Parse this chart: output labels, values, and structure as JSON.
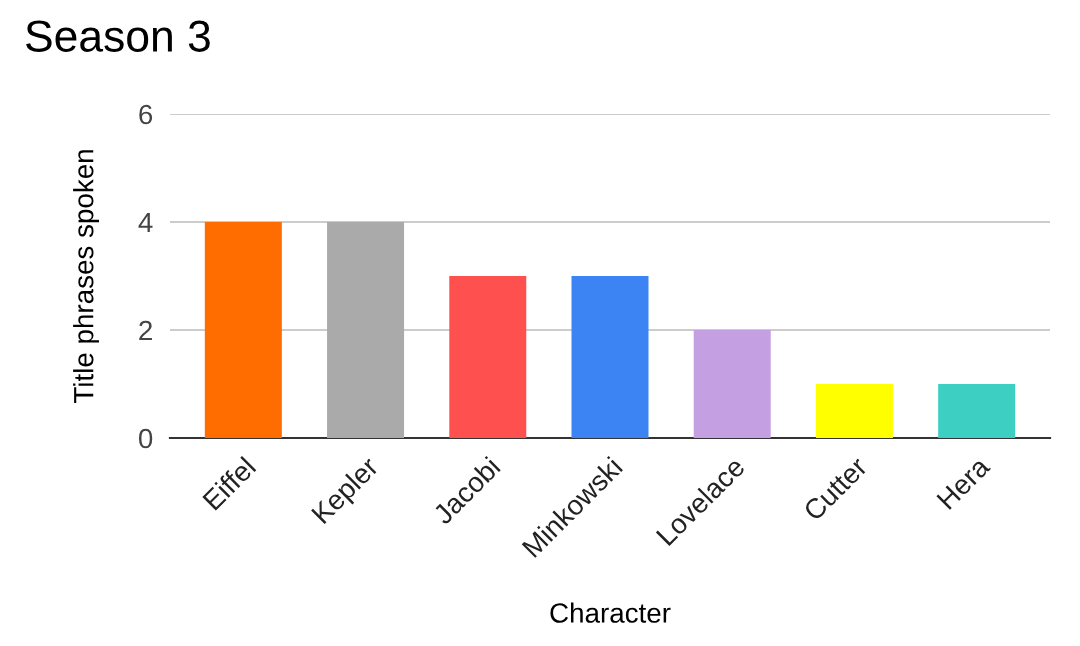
{
  "chart_data": {
    "type": "bar",
    "title": "Season 3",
    "xlabel": "Character",
    "ylabel": "Title phrases spoken",
    "categories": [
      "Eiffel",
      "Kepler",
      "Jacobi",
      "Minkowski",
      "Lovelace",
      "Cutter",
      "Hera"
    ],
    "values": [
      4,
      4,
      3,
      3,
      2,
      1,
      1
    ],
    "colors": [
      "#ff6d01",
      "#aaaaaa",
      "#ff5050",
      "#3c84f4",
      "#c49fe2",
      "#ffff00",
      "#3ecfc3"
    ],
    "ylim": [
      0,
      6
    ],
    "yticks": [
      0,
      2,
      4,
      6
    ],
    "grid": "y",
    "legend": false
  }
}
